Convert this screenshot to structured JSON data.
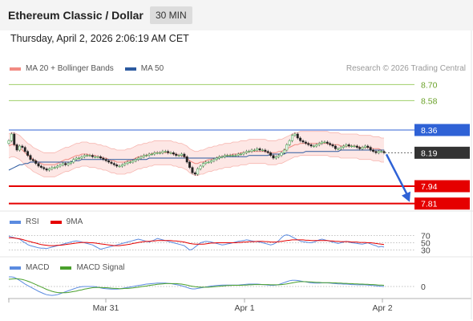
{
  "header": {
    "title": "Ethereum Classic / Dollar",
    "timeframe": "30 MIN",
    "datetime": "Thursday, April 2, 2026 2:06:19 AM CET"
  },
  "legend": {
    "ma20_label": "MA 20 + Bollinger Bands",
    "ma50_label": "MA 50",
    "credit": "Research © 2026 Trading Central"
  },
  "colors": {
    "ma20": "#f28b82",
    "ma50": "#2c5aa0",
    "resistance": "#9fcf6a",
    "pivot": "#2f62d6",
    "support": "#e50000",
    "current": "#333333",
    "bullish_candle": "#2e9d3a",
    "bearish_candle": "#d32f2f",
    "rsi": "#5b8be0",
    "rsi_ma": "#e50000",
    "macd": "#5b8be0",
    "macd_signal": "#4aa02c",
    "forecast_arrow": "#2f62d6"
  },
  "chart_data": [
    {
      "type": "candlestick",
      "pane": "price",
      "x_ticks": [
        "Mar 31",
        "Apr 1",
        "Apr 2"
      ],
      "price_range": [
        7.76,
        8.78
      ],
      "levels": [
        {
          "name": "resistance-2",
          "value": 8.7,
          "label": "8.70",
          "kind": "resistance"
        },
        {
          "name": "resistance-1",
          "value": 8.58,
          "label": "8.58",
          "kind": "resistance"
        },
        {
          "name": "pivot",
          "value": 8.36,
          "label": "8.36",
          "kind": "pivot"
        },
        {
          "name": "current-price",
          "value": 8.19,
          "label": "8.19",
          "kind": "current"
        },
        {
          "name": "support-1",
          "value": 7.94,
          "label": "7.94",
          "kind": "support"
        },
        {
          "name": "support-2",
          "value": 7.81,
          "label": "7.81",
          "kind": "support"
        }
      ],
      "close": [
        8.28,
        8.33,
        8.25,
        8.21,
        8.24,
        8.23,
        8.2,
        8.17,
        8.14,
        8.13,
        8.11,
        8.09,
        8.08,
        8.07,
        8.06,
        8.07,
        8.08,
        8.08,
        8.09,
        8.1,
        8.11,
        8.1,
        8.11,
        8.12,
        8.14,
        8.15,
        8.15,
        8.16,
        8.17,
        8.17,
        8.17,
        8.16,
        8.16,
        8.16,
        8.15,
        8.14,
        8.13,
        8.12,
        8.11,
        8.1,
        8.09,
        8.09,
        8.1,
        8.11,
        8.12,
        8.12,
        8.13,
        8.14,
        8.15,
        8.16,
        8.17,
        8.17,
        8.18,
        8.18,
        8.19,
        8.19,
        8.19,
        8.2,
        8.2,
        8.19,
        8.19,
        8.18,
        8.17,
        8.17,
        8.18,
        8.16,
        8.12,
        8.08,
        8.04,
        8.03,
        8.07,
        8.09,
        8.11,
        8.12,
        8.12,
        8.13,
        8.14,
        8.15,
        8.16,
        8.16,
        8.17,
        8.17,
        8.17,
        8.17,
        8.17,
        8.18,
        8.18,
        8.19,
        8.2,
        8.2,
        8.21,
        8.21,
        8.22,
        8.21,
        8.21,
        8.2,
        8.19,
        8.17,
        8.15,
        8.16,
        8.17,
        8.19,
        8.21,
        8.25,
        8.28,
        8.32,
        8.33,
        8.3,
        8.28,
        8.27,
        8.26,
        8.25,
        8.24,
        8.24,
        8.25,
        8.26,
        8.27,
        8.27,
        8.26,
        8.25,
        8.24,
        8.22,
        8.22,
        8.23,
        8.24,
        8.25,
        8.24,
        8.24,
        8.24,
        8.23,
        8.22,
        8.23,
        8.24,
        8.23,
        8.21,
        8.2,
        8.19,
        8.2,
        8.2,
        8.19
      ],
      "ma20": [
        8.24,
        8.25,
        8.25,
        8.24,
        8.23,
        8.21,
        8.19,
        8.17,
        8.16,
        8.14,
        8.13,
        8.12,
        8.11,
        8.1,
        8.1,
        8.1,
        8.1,
        8.1,
        8.11,
        8.12,
        8.13,
        8.14,
        8.14,
        8.15,
        8.16,
        8.17,
        8.17,
        8.18,
        8.18,
        8.18,
        8.17,
        8.17,
        8.17,
        8.16,
        8.16,
        8.15,
        8.15,
        8.14,
        8.13,
        8.13,
        8.12,
        8.12,
        8.12,
        8.12,
        8.13,
        8.13,
        8.14,
        8.15,
        8.16,
        8.16,
        8.17,
        8.17,
        8.18,
        8.18,
        8.19,
        8.19,
        8.19,
        8.19,
        8.19,
        8.19,
        8.19,
        8.18,
        8.18,
        8.17,
        8.17,
        8.16,
        8.15,
        8.13,
        8.12,
        8.11,
        8.11,
        8.12,
        8.12,
        8.13,
        8.14,
        8.14,
        8.15,
        8.15,
        8.16,
        8.16,
        8.17,
        8.17,
        8.17,
        8.18,
        8.18,
        8.18,
        8.19,
        8.19,
        8.19,
        8.2,
        8.2,
        8.2,
        8.2,
        8.2,
        8.2,
        8.2,
        8.19,
        8.19,
        8.19,
        8.19,
        8.2,
        8.2,
        8.21,
        8.22,
        8.23,
        8.24,
        8.25,
        8.25,
        8.26,
        8.26,
        8.26,
        8.26,
        8.26,
        8.26,
        8.26,
        8.26,
        8.26,
        8.26,
        8.26,
        8.25,
        8.25,
        8.25,
        8.25,
        8.24,
        8.24,
        8.24,
        8.24,
        8.24,
        8.24,
        8.24,
        8.23,
        8.23,
        8.23,
        8.23,
        8.23,
        8.22,
        8.22,
        8.22,
        8.21,
        8.21
      ],
      "ma50": [
        8.06,
        8.07,
        8.08,
        8.09,
        8.1,
        8.1,
        8.11,
        8.11,
        8.12,
        8.12,
        8.12,
        8.12,
        8.12,
        8.12,
        8.12,
        8.12,
        8.12,
        8.12,
        8.12,
        8.12,
        8.12,
        8.12,
        8.12,
        8.12,
        8.13,
        8.13,
        8.13,
        8.14,
        8.14,
        8.14,
        8.14,
        8.14,
        8.14,
        8.14,
        8.14,
        8.14,
        8.14,
        8.14,
        8.14,
        8.14,
        8.14,
        8.14,
        8.14,
        8.14,
        8.14,
        8.14,
        8.14,
        8.14,
        8.14,
        8.14,
        8.14,
        8.14,
        8.15,
        8.15,
        8.15,
        8.15,
        8.15,
        8.15,
        8.15,
        8.15,
        8.15,
        8.15,
        8.15,
        8.15,
        8.15,
        8.15,
        8.15,
        8.15,
        8.15,
        8.15,
        8.15,
        8.15,
        8.15,
        8.15,
        8.15,
        8.15,
        8.15,
        8.15,
        8.15,
        8.16,
        8.16,
        8.16,
        8.16,
        8.16,
        8.16,
        8.16,
        8.16,
        8.16,
        8.16,
        8.17,
        8.17,
        8.17,
        8.17,
        8.17,
        8.17,
        8.17,
        8.17,
        8.18,
        8.18,
        8.18,
        8.18,
        8.18,
        8.18,
        8.19,
        8.19,
        8.19,
        8.19,
        8.19,
        8.19,
        8.19,
        8.2,
        8.2,
        8.2,
        8.2,
        8.2,
        8.2,
        8.2,
        8.2,
        8.2,
        8.2,
        8.2,
        8.2,
        8.2,
        8.21,
        8.21,
        8.21,
        8.21,
        8.21,
        8.21,
        8.21,
        8.21,
        8.21,
        8.21,
        8.21,
        8.21,
        8.21,
        8.21,
        8.21,
        8.21,
        8.21
      ],
      "forecast": {
        "from": 8.19,
        "to": 7.81
      }
    },
    {
      "type": "line",
      "pane": "rsi",
      "series_labels": [
        "RSI",
        "9MA"
      ],
      "levels": [
        70,
        50,
        30
      ],
      "ylim": [
        20,
        80
      ],
      "rsi": [
        68,
        66,
        64,
        62,
        60,
        55,
        50,
        45,
        42,
        40,
        38,
        36,
        35,
        35,
        34,
        36,
        38,
        40,
        42,
        44,
        46,
        48,
        50,
        52,
        54,
        55,
        54,
        52,
        50,
        48,
        46,
        44,
        40,
        36,
        32,
        34,
        36,
        38,
        40,
        42,
        44,
        46,
        48,
        50,
        52,
        54,
        56,
        58,
        60,
        58,
        56,
        54,
        52,
        55,
        58,
        62,
        60,
        58,
        56,
        54,
        52,
        50,
        48,
        46,
        44,
        42,
        36,
        30,
        32,
        38,
        44,
        50,
        52,
        54,
        53,
        52,
        50,
        48,
        46,
        44,
        45,
        47,
        48,
        50,
        52,
        54,
        55,
        56,
        58,
        57,
        55,
        54,
        53,
        52,
        50,
        48,
        46,
        44,
        46,
        50,
        56,
        64,
        70,
        72,
        70,
        66,
        62,
        58,
        55,
        53,
        52,
        51,
        50,
        52,
        55,
        58,
        60,
        58,
        56,
        54,
        52,
        50,
        48,
        50,
        52,
        54,
        52,
        50,
        49,
        48,
        47,
        46,
        48,
        50,
        47,
        44,
        42,
        38,
        40,
        38
      ],
      "ma": [
        64,
        64,
        63,
        62,
        61,
        59,
        57,
        55,
        53,
        51,
        49,
        47,
        45,
        44,
        43,
        42,
        42,
        42,
        43,
        43,
        44,
        45,
        46,
        47,
        48,
        49,
        50,
        51,
        51,
        51,
        50,
        50,
        49,
        48,
        47,
        46,
        45,
        44,
        43,
        42,
        42,
        42,
        43,
        44,
        45,
        46,
        48,
        49,
        51,
        52,
        53,
        54,
        54,
        55,
        55,
        56,
        56,
        56,
        56,
        56,
        56,
        55,
        55,
        54,
        53,
        52,
        50,
        48,
        47,
        46,
        46,
        46,
        46,
        47,
        48,
        49,
        49,
        50,
        50,
        50,
        50,
        50,
        50,
        50,
        50,
        51,
        51,
        52,
        52,
        53,
        53,
        53,
        54,
        54,
        54,
        53,
        53,
        52,
        52,
        52,
        53,
        54,
        55,
        56,
        57,
        58,
        58,
        58,
        58,
        58,
        57,
        57,
        56,
        56,
        56,
        56,
        56,
        56,
        56,
        55,
        55,
        54,
        54,
        53,
        53,
        53,
        53,
        52,
        52,
        52,
        51,
        51,
        51,
        50,
        50,
        49,
        48,
        47,
        46,
        45
      ]
    },
    {
      "type": "line",
      "pane": "macd",
      "series_labels": [
        "MACD",
        "MACD Signal"
      ],
      "zero_label": "0",
      "ylim": [
        -0.05,
        0.05
      ],
      "macd": [
        0.04,
        0.04,
        0.038,
        0.032,
        0.025,
        0.018,
        0.01,
        0.004,
        -0.002,
        -0.008,
        -0.014,
        -0.02,
        -0.025,
        -0.03,
        -0.034,
        -0.036,
        -0.037,
        -0.036,
        -0.034,
        -0.03,
        -0.026,
        -0.022,
        -0.018,
        -0.014,
        -0.01,
        -0.006,
        -0.003,
        -0.001,
        0.0,
        0.0,
        0.0,
        0.0,
        -0.001,
        -0.003,
        -0.006,
        -0.008,
        -0.009,
        -0.01,
        -0.011,
        -0.011,
        -0.011,
        -0.01,
        -0.008,
        -0.006,
        -0.004,
        -0.002,
        0.0,
        0.002,
        0.004,
        0.006,
        0.008,
        0.01,
        0.011,
        0.012,
        0.013,
        0.014,
        0.014,
        0.014,
        0.014,
        0.013,
        0.012,
        0.01,
        0.008,
        0.006,
        0.003,
        0.0,
        -0.004,
        -0.008,
        -0.01,
        -0.01,
        -0.008,
        -0.006,
        -0.004,
        -0.002,
        0.0,
        0.002,
        0.003,
        0.004,
        0.005,
        0.006,
        0.006,
        0.006,
        0.006,
        0.006,
        0.006,
        0.006,
        0.007,
        0.008,
        0.009,
        0.01,
        0.01,
        0.01,
        0.01,
        0.009,
        0.008,
        0.007,
        0.006,
        0.005,
        0.005,
        0.006,
        0.008,
        0.012,
        0.016,
        0.02,
        0.024,
        0.026,
        0.026,
        0.025,
        0.023,
        0.021,
        0.019,
        0.017,
        0.015,
        0.014,
        0.014,
        0.014,
        0.015,
        0.015,
        0.015,
        0.014,
        0.013,
        0.012,
        0.011,
        0.011,
        0.01,
        0.01,
        0.009,
        0.008,
        0.008,
        0.007,
        0.007,
        0.007,
        0.007,
        0.006,
        0.005,
        0.004,
        0.003,
        0.002,
        0.001,
        0.0
      ],
      "signal": [
        0.03,
        0.031,
        0.032,
        0.032,
        0.031,
        0.029,
        0.026,
        0.022,
        0.018,
        0.013,
        0.008,
        0.003,
        -0.002,
        -0.007,
        -0.012,
        -0.016,
        -0.02,
        -0.023,
        -0.025,
        -0.026,
        -0.026,
        -0.026,
        -0.025,
        -0.023,
        -0.021,
        -0.019,
        -0.016,
        -0.014,
        -0.011,
        -0.009,
        -0.007,
        -0.005,
        -0.004,
        -0.004,
        -0.004,
        -0.005,
        -0.005,
        -0.006,
        -0.007,
        -0.008,
        -0.008,
        -0.009,
        -0.009,
        -0.008,
        -0.008,
        -0.007,
        -0.006,
        -0.004,
        -0.003,
        -0.001,
        0.001,
        0.002,
        0.004,
        0.006,
        0.007,
        0.009,
        0.01,
        0.011,
        0.012,
        0.012,
        0.012,
        0.012,
        0.012,
        0.011,
        0.01,
        0.008,
        0.006,
        0.003,
        0.001,
        -0.001,
        -0.002,
        -0.003,
        -0.003,
        -0.003,
        -0.003,
        -0.002,
        -0.001,
        0.0,
        0.001,
        0.002,
        0.003,
        0.004,
        0.004,
        0.005,
        0.005,
        0.005,
        0.005,
        0.006,
        0.006,
        0.007,
        0.007,
        0.008,
        0.008,
        0.008,
        0.008,
        0.008,
        0.008,
        0.007,
        0.007,
        0.007,
        0.007,
        0.008,
        0.009,
        0.011,
        0.013,
        0.015,
        0.017,
        0.019,
        0.02,
        0.02,
        0.02,
        0.019,
        0.019,
        0.018,
        0.017,
        0.017,
        0.016,
        0.016,
        0.016,
        0.016,
        0.015,
        0.015,
        0.014,
        0.014,
        0.013,
        0.013,
        0.012,
        0.012,
        0.011,
        0.011,
        0.01,
        0.01,
        0.009,
        0.009,
        0.008,
        0.008,
        0.007,
        0.006,
        0.006,
        0.005
      ]
    }
  ]
}
